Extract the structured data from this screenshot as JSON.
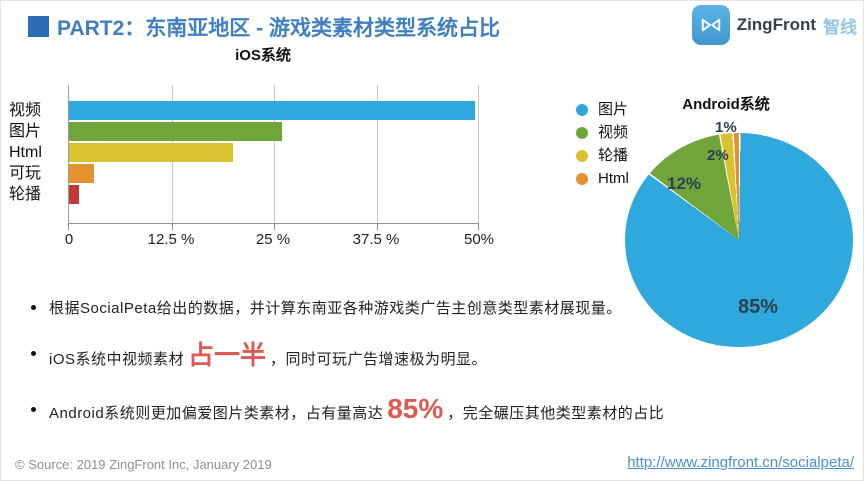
{
  "header": {
    "title": "PART2：东南亚地区 - 游戏类素材类型系统占比",
    "logo": {
      "brand": "ZingFront",
      "brand_cn": "智线"
    }
  },
  "colors": {
    "title_blue": "#3f7fc1",
    "marker_blue": "#2a6db5",
    "accent_red": "#dd5a52",
    "link_blue": "#4a90d2"
  },
  "chart_data": [
    {
      "type": "bar",
      "title": "iOS系统",
      "orientation": "horizontal",
      "categories": [
        "视频",
        "图片",
        "Html",
        "可玩",
        "轮播"
      ],
      "values": [
        49.5,
        26,
        20,
        3,
        1.2
      ],
      "unit": "%",
      "xlim": [
        0,
        50
      ],
      "x_ticks": [
        "0",
        "12.5 %",
        "25 %",
        "37.5 %",
        "50%"
      ],
      "colors": [
        "#2fa8dd",
        "#6fa53b",
        "#d9c22e",
        "#e49130",
        "#c43a34"
      ],
      "grid": true,
      "legend_position": "none"
    },
    {
      "type": "pie",
      "title": "Android系统",
      "labels": [
        "图片",
        "视频",
        "轮播",
        "Html"
      ],
      "values": [
        85,
        12,
        2,
        1
      ],
      "value_labels": [
        "85%",
        "12%",
        "2%",
        "1%"
      ],
      "colors": [
        "#2fa8dd",
        "#6fa53b",
        "#d9c22e",
        "#e49130"
      ],
      "legend_position": "left",
      "start_angle_deg": 0,
      "direction": "clockwise"
    }
  ],
  "bullets": [
    {
      "text": "根据SocialPeta给出的数据，并计算东南亚各种游戏类广告主创意类型素材展现量。"
    },
    {
      "pre": "iOS系统中视频素材",
      "highlight": "占一半",
      "post": "，同时可玩广告增速极为明显。"
    },
    {
      "pre": "Android系统则更加偏爱图片类素材，占有量高达",
      "highlight": "85%",
      "post": "，完全碾压其他类型素材的占比"
    }
  ],
  "footer": {
    "source": "© Source: 2019 ZingFront Inc, January 2019",
    "link": "http://www.zingfront.cn/socialpeta/"
  }
}
